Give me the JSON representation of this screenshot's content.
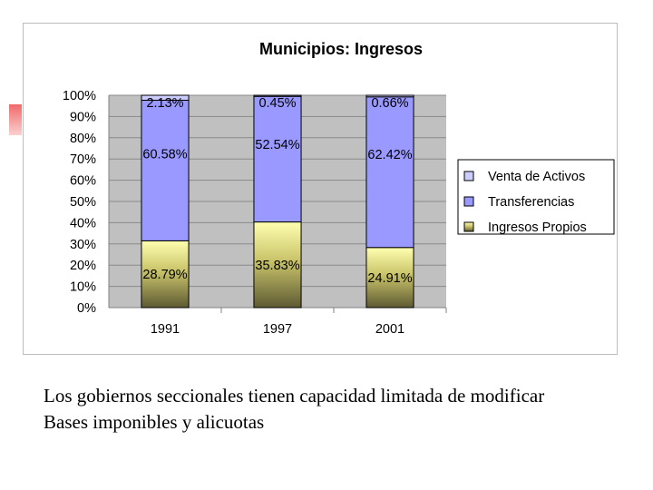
{
  "chart_data": {
    "type": "bar",
    "stacked": true,
    "percent": true,
    "title": "Municipios: Ingresos",
    "categories": [
      "1991",
      "1997",
      "2001"
    ],
    "series": [
      {
        "name": "Ingresos Propios",
        "values": [
          28.79,
          35.83,
          24.91
        ],
        "labels": [
          "28.79%",
          "35.83%",
          "24.91%"
        ],
        "color": "#ffff99"
      },
      {
        "name": "Transferencias",
        "values": [
          60.58,
          52.54,
          62.42
        ],
        "labels": [
          "60.58%",
          "52.54%",
          "62.42%"
        ],
        "color": "#9999ff"
      },
      {
        "name": "Venta de Activos",
        "values": [
          2.13,
          0.45,
          0.66
        ],
        "labels": [
          "2.13%",
          "0.45%",
          "0.66%"
        ],
        "color": "#ccccff"
      }
    ],
    "yticks": [
      "0%",
      "10%",
      "20%",
      "30%",
      "40%",
      "50%",
      "60%",
      "70%",
      "80%",
      "90%",
      "100%"
    ],
    "ylim": [
      0,
      100
    ],
    "legend_position": "right",
    "legend_order": [
      "Venta de Activos",
      "Transferencias",
      "Ingresos Propios"
    ],
    "plot_background": "#c0c0c0"
  },
  "caption": {
    "line1": "Los gobiernos seccionales tienen capacidad limitada de modificar",
    "line2": "Bases imponibles y alicuotas"
  }
}
